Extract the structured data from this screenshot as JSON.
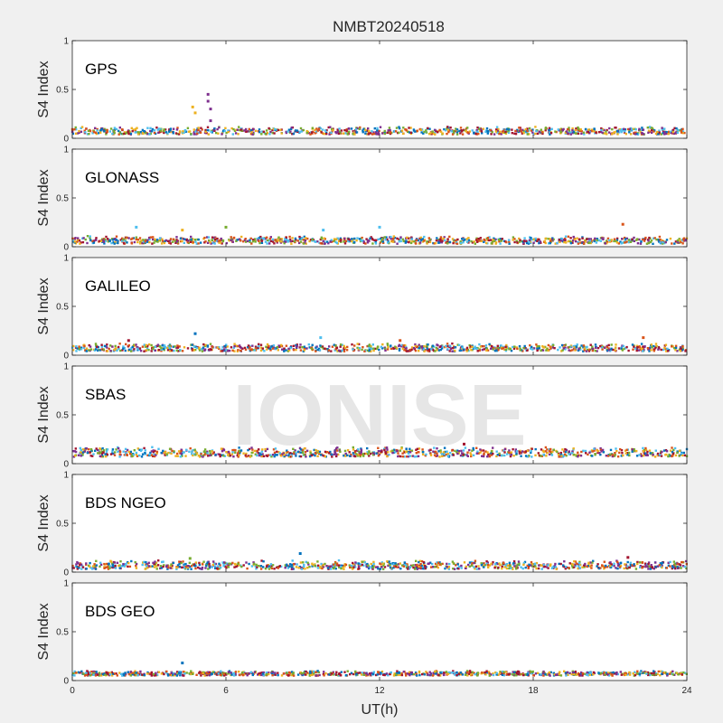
{
  "figure_title": "NMBT20240518",
  "watermark": "IONISE",
  "colors": {
    "figure_bg": "#f0f0f0",
    "axes_bg": "#ffffff",
    "series": [
      "#0072bd",
      "#d95319",
      "#edb120",
      "#7e2f8e",
      "#77ac30",
      "#4dbeee",
      "#a2142f"
    ]
  },
  "chart_data": [
    {
      "type": "scatter",
      "label": "GPS",
      "ylabel": "S4 Index",
      "ylim": [
        0,
        1
      ],
      "xlim": [
        0,
        24
      ],
      "yticks": [
        "0",
        "0.5",
        "1"
      ],
      "show_xticks": false,
      "baseline": [
        0.04,
        0.12
      ],
      "spikes": [
        {
          "x": 4.7,
          "y": 0.32,
          "c": 2
        },
        {
          "x": 4.8,
          "y": 0.26,
          "c": 2
        },
        {
          "x": 5.3,
          "y": 0.45,
          "c": 3
        },
        {
          "x": 5.3,
          "y": 0.38,
          "c": 3
        },
        {
          "x": 5.4,
          "y": 0.3,
          "c": 3
        },
        {
          "x": 5.4,
          "y": 0.18,
          "c": 3
        }
      ]
    },
    {
      "type": "scatter",
      "label": "GLONASS",
      "ylabel": "S4 Index",
      "ylim": [
        0,
        1
      ],
      "xlim": [
        0,
        24
      ],
      "yticks": [
        "0",
        "0.5",
        "1"
      ],
      "show_xticks": false,
      "baseline": [
        0.03,
        0.11
      ],
      "spikes": [
        {
          "x": 2.5,
          "y": 0.2,
          "c": 5
        },
        {
          "x": 6.0,
          "y": 0.2,
          "c": 4
        },
        {
          "x": 9.8,
          "y": 0.17,
          "c": 5
        },
        {
          "x": 12.0,
          "y": 0.2,
          "c": 5
        },
        {
          "x": 21.5,
          "y": 0.23,
          "c": 1
        },
        {
          "x": 4.3,
          "y": 0.17,
          "c": 2
        }
      ]
    },
    {
      "type": "scatter",
      "label": "GALILEO",
      "ylabel": "S4 Index",
      "ylim": [
        0,
        1
      ],
      "xlim": [
        0,
        24
      ],
      "yticks": [
        "0",
        "0.5",
        "1"
      ],
      "show_xticks": false,
      "baseline": [
        0.04,
        0.12
      ],
      "spikes": [
        {
          "x": 4.8,
          "y": 0.22,
          "c": 0
        },
        {
          "x": 9.7,
          "y": 0.18,
          "c": 5
        },
        {
          "x": 12.8,
          "y": 0.15,
          "c": 1
        },
        {
          "x": 22.3,
          "y": 0.18,
          "c": 1
        },
        {
          "x": 2.2,
          "y": 0.15,
          "c": 6
        }
      ]
    },
    {
      "type": "scatter",
      "label": "SBAS",
      "ylabel": "S4 Index",
      "ylim": [
        0,
        1
      ],
      "xlim": [
        0,
        24
      ],
      "yticks": [
        "0",
        "0.5",
        "1"
      ],
      "show_xticks": false,
      "baseline": [
        0.07,
        0.17
      ],
      "spikes": [
        {
          "x": 15.3,
          "y": 0.2,
          "c": 6
        }
      ]
    },
    {
      "type": "scatter",
      "label": "BDS NGEO",
      "ylabel": "S4 Index",
      "ylim": [
        0,
        1
      ],
      "xlim": [
        0,
        24
      ],
      "yticks": [
        "0",
        "0.5",
        "1"
      ],
      "show_xticks": false,
      "baseline": [
        0.03,
        0.12
      ],
      "spikes": [
        {
          "x": 8.9,
          "y": 0.19,
          "c": 0
        },
        {
          "x": 21.7,
          "y": 0.15,
          "c": 6
        },
        {
          "x": 4.6,
          "y": 0.14,
          "c": 4
        }
      ]
    },
    {
      "type": "scatter",
      "label": "BDS GEO",
      "ylabel": "S4 Index",
      "ylim": [
        0,
        1
      ],
      "xlim": [
        0,
        24
      ],
      "yticks": [
        "0",
        "0.5",
        "1"
      ],
      "show_xticks": true,
      "xticks": [
        "0",
        "6",
        "12",
        "18",
        "24"
      ],
      "xlabel": "UT(h)",
      "baseline": [
        0.05,
        0.1
      ],
      "spikes": [
        {
          "x": 4.3,
          "y": 0.18,
          "c": 0
        }
      ]
    }
  ]
}
